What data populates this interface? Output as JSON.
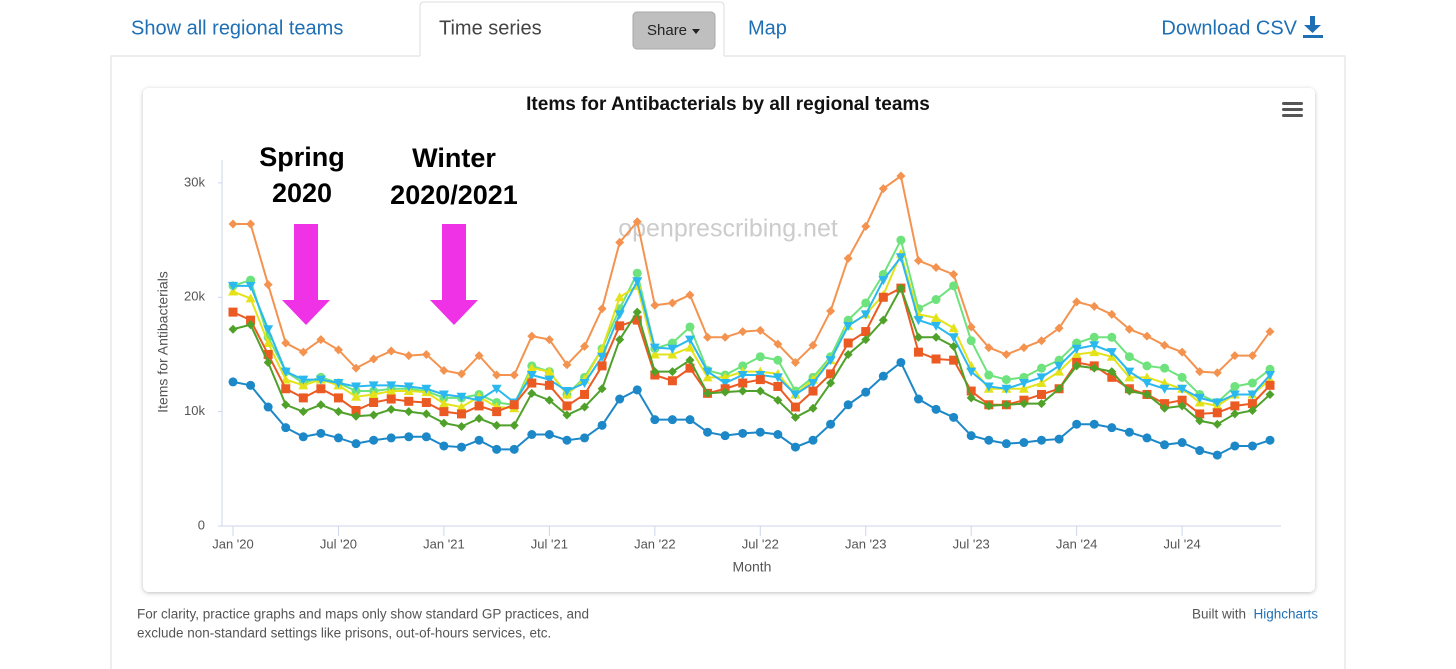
{
  "tabs": {
    "items": [
      "Show all regional teams",
      "Time series",
      "Map"
    ],
    "active": 1,
    "share": "Share",
    "download": "Download CSV"
  },
  "chart_data": {
    "type": "line",
    "title": "Items for Antibacterials by all regional teams",
    "y_label": "Items for Antibacterials",
    "x_label": "Month",
    "watermark": "openprescribing.net",
    "annotations": [
      [
        "Spring",
        "2020"
      ],
      [
        "Winter",
        "2020/2021"
      ]
    ],
    "categories": [
      "Jan '20",
      null,
      null,
      null,
      null,
      null,
      "Jul '20",
      null,
      null,
      null,
      null,
      null,
      "Jan '21",
      null,
      null,
      null,
      null,
      null,
      "Jul '21",
      null,
      null,
      null,
      null,
      null,
      "Jan '22",
      null,
      null,
      null,
      null,
      null,
      "Jul '22",
      null,
      null,
      null,
      null,
      null,
      "Jan '23",
      null,
      null,
      null,
      null,
      null,
      "Jul '23",
      null,
      null,
      null,
      null,
      null,
      "Jan '24",
      null,
      null,
      null,
      null,
      null,
      "Jul '24",
      null,
      null,
      null,
      null,
      null
    ],
    "ylim": [
      0,
      32000
    ],
    "yticks": [
      0,
      {
        "value": 10000,
        "label": "10k"
      },
      {
        "value": 20000,
        "label": "20k"
      },
      {
        "value": 30000,
        "label": "30k"
      }
    ],
    "grid": false,
    "series": [
      {
        "color": "#f4934f",
        "marker": "diamond",
        "values": [
          26400,
          26400,
          21100,
          16000,
          15200,
          16300,
          15400,
          13800,
          14600,
          15300,
          14900,
          15000,
          13600,
          13300,
          14900,
          13200,
          13200,
          16600,
          16300,
          14100,
          15700,
          19000,
          24800,
          26600,
          19300,
          19500,
          20200,
          16500,
          16500,
          17000,
          17100,
          15900,
          14300,
          15800,
          18800,
          23400,
          26200,
          29500,
          30600,
          23200,
          22600,
          22000,
          17400,
          15600,
          15000,
          15600,
          16200,
          17300,
          19600,
          19200,
          18500,
          17200,
          16600,
          15800,
          15200,
          13500,
          13400,
          14900,
          14900,
          17000
        ]
      },
      {
        "color": "#6ee37d",
        "marker": "circle",
        "values": [
          21000,
          21500,
          16500,
          13500,
          12500,
          13000,
          12500,
          11800,
          11800,
          12000,
          12000,
          11800,
          11200,
          11200,
          11500,
          10800,
          10600,
          14000,
          13500,
          11500,
          13000,
          15500,
          19000,
          22100,
          15500,
          16000,
          17400,
          13600,
          13200,
          14000,
          14800,
          14500,
          11800,
          13000,
          14800,
          18000,
          19500,
          22000,
          25000,
          19000,
          19800,
          21000,
          16200,
          13200,
          12800,
          13000,
          13800,
          14500,
          16000,
          16500,
          16500,
          14800,
          14000,
          13800,
          13000,
          11500,
          10800,
          12200,
          12500,
          13700
        ]
      },
      {
        "color": "#e4e319",
        "marker": "triangle",
        "values": [
          20500,
          19900,
          16000,
          12800,
          12300,
          12800,
          12300,
          11300,
          11500,
          11800,
          11800,
          11700,
          10700,
          10400,
          11300,
          10400,
          10300,
          13800,
          13500,
          11500,
          12800,
          15500,
          20000,
          21000,
          15000,
          15000,
          15600,
          13000,
          13000,
          13500,
          13500,
          13300,
          11500,
          12800,
          14500,
          17500,
          18500,
          20200,
          23800,
          18500,
          18200,
          17300,
          14000,
          12000,
          12000,
          12000,
          12500,
          13500,
          15000,
          15200,
          14800,
          13000,
          13000,
          12500,
          12000,
          10800,
          10500,
          11500,
          11500,
          12800
        ]
      },
      {
        "color": "#2bb8ef",
        "marker": "triangle-down",
        "values": [
          21000,
          21000,
          17200,
          13500,
          12800,
          12800,
          12500,
          12200,
          12300,
          12300,
          12200,
          12000,
          11500,
          11300,
          11000,
          12000,
          10800,
          13200,
          12800,
          11800,
          12500,
          14800,
          18500,
          21400,
          15600,
          15500,
          16300,
          13500,
          12500,
          13200,
          13200,
          13000,
          11500,
          12500,
          14500,
          17500,
          18500,
          21500,
          23500,
          18000,
          17500,
          16500,
          13500,
          12200,
          12000,
          12500,
          13000,
          14000,
          15500,
          15800,
          15200,
          13500,
          12500,
          12000,
          12000,
          11200,
          10800,
          11500,
          11500,
          13200
        ]
      },
      {
        "color": "#ec5a24",
        "marker": "square",
        "values": [
          18700,
          18000,
          15000,
          12000,
          11200,
          12000,
          11200,
          10100,
          10800,
          11100,
          10900,
          10800,
          10000,
          9800,
          10500,
          10000,
          10600,
          12500,
          12300,
          10500,
          11500,
          14000,
          17500,
          18000,
          13200,
          12700,
          13800,
          11600,
          12000,
          12500,
          12800,
          12200,
          10400,
          11800,
          13300,
          16000,
          17000,
          20000,
          20800,
          15200,
          14600,
          14500,
          11800,
          10600,
          10600,
          11000,
          11500,
          12000,
          14300,
          14000,
          13000,
          12000,
          11500,
          10700,
          11000,
          9800,
          9900,
          10500,
          10700,
          12300
        ]
      },
      {
        "color": "#4fa12a",
        "marker": "diamond",
        "values": [
          17200,
          17600,
          14300,
          10600,
          10000,
          10600,
          10000,
          9600,
          9700,
          10200,
          10000,
          9800,
          9000,
          8700,
          9400,
          8800,
          8800,
          11600,
          11000,
          9700,
          10400,
          12000,
          16300,
          18700,
          13500,
          13500,
          14500,
          11600,
          11700,
          11800,
          11800,
          11000,
          9500,
          10300,
          12500,
          15000,
          16300,
          18000,
          20800,
          16500,
          16500,
          15700,
          11200,
          10500,
          10600,
          10700,
          10700,
          12000,
          14000,
          13800,
          13500,
          11800,
          11500,
          10300,
          10500,
          9200,
          8900,
          9800,
          10100,
          11500
        ]
      },
      {
        "color": "#1c88c7",
        "marker": "circle",
        "values": [
          12600,
          12300,
          10400,
          8600,
          7800,
          8100,
          7700,
          7200,
          7500,
          7700,
          7800,
          7800,
          7000,
          6900,
          7500,
          6700,
          6700,
          8000,
          8000,
          7500,
          7700,
          8800,
          11100,
          11900,
          9300,
          9300,
          9300,
          8200,
          7900,
          8100,
          8200,
          8000,
          6900,
          7500,
          8900,
          10600,
          11700,
          13100,
          14300,
          11100,
          10200,
          9500,
          7900,
          7500,
          7200,
          7300,
          7500,
          7600,
          8900,
          8900,
          8600,
          8200,
          7700,
          7100,
          7300,
          6600,
          6200,
          7000,
          7000,
          7500
        ]
      }
    ]
  },
  "footer": {
    "note": [
      "For clarity, practice graphs and maps only show standard GP practices, and",
      "exclude non-standard settings like prisons, out-of-hours services, etc."
    ],
    "built_with": "Built with",
    "highcharts": "Highcharts"
  }
}
